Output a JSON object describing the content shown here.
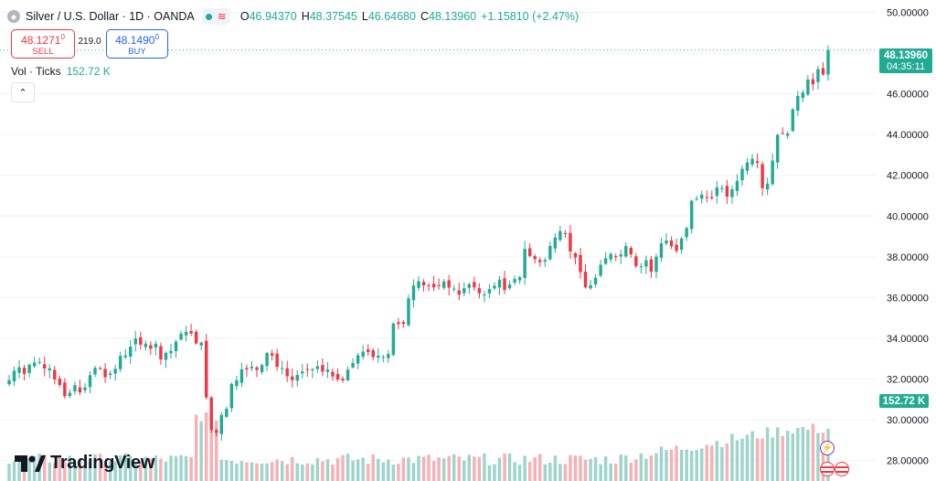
{
  "header": {
    "title": "Silver / U.S. Dollar · 1D · OANDA",
    "o_label": "O",
    "o_value": "46.94370",
    "h_label": "H",
    "h_value": "48.37545",
    "l_label": "L",
    "l_value": "46.64680",
    "c_label": "C",
    "c_value": "48.13960",
    "change": "+1.15810 (+2.47%)"
  },
  "trade": {
    "sell_price": "48.1271",
    "sell_price_sup": "0",
    "sell_label": "SELL",
    "spread": "219.0",
    "buy_price": "48.1490",
    "buy_price_sup": "0",
    "buy_label": "BUY"
  },
  "volume": {
    "label": "Vol · Ticks",
    "value": "152.72 K"
  },
  "price_badge": {
    "price": "48.13960",
    "countdown": "04:35:11"
  },
  "volume_badge": "152.72 K",
  "brand": "TradingView",
  "colors": {
    "up": "#22ab94",
    "down": "#f23645",
    "up_vol": "#9ed4cb",
    "down_vol": "#f5b1b5",
    "grid": "#f0f3fa"
  },
  "chart_data": {
    "type": "candlestick",
    "title": "Silver / U.S. Dollar · 1D · OANDA",
    "ylim": [
      27.0,
      50.6
    ],
    "y_ticks": [
      "50.00000",
      "48.00000",
      "46.00000",
      "44.00000",
      "42.00000",
      "40.00000",
      "38.00000",
      "36.00000",
      "34.00000",
      "32.00000",
      "30.00000",
      "28.00000"
    ],
    "y_tick_values": [
      50,
      48,
      46,
      44,
      42,
      40,
      38,
      36,
      34,
      32,
      30,
      28
    ],
    "last_price": 48.1396,
    "close": [
      31.95,
      32.41,
      32.58,
      32.26,
      32.7,
      32.81,
      32.84,
      32.52,
      32.53,
      31.98,
      31.71,
      31.16,
      31.33,
      31.7,
      31.35,
      31.59,
      32.19,
      32.55,
      32.52,
      32.09,
      32.27,
      32.5,
      33.14,
      33.16,
      33.59,
      33.99,
      33.69,
      33.74,
      33.49,
      33.74,
      32.96,
      33.28,
      33.38,
      33.84,
      34.23,
      34.32,
      34.24,
      33.75,
      33.79,
      31.1,
      29.5,
      29.37,
      30.24,
      30.54,
      31.76,
      31.94,
      32.48,
      32.48,
      32.61,
      32.45,
      32.69,
      33.28,
      33.15,
      32.6,
      32.53,
      32.14,
      31.95,
      32.21,
      32.37,
      32.46,
      32.48,
      32.63,
      32.37,
      32.47,
      32.13,
      31.98,
      31.94,
      32.46,
      32.79,
      33.17,
      33.35,
      33.33,
      33.08,
      33.15,
      33.09,
      33.23,
      34.73,
      34.7,
      34.71,
      35.96,
      36.59,
      36.81,
      36.6,
      36.58,
      36.5,
      36.58,
      36.79,
      36.49,
      36.44,
      36.14,
      36.46,
      36.65,
      36.5,
      36.21,
      36.15,
      36.42,
      36.58,
      36.88,
      36.37,
      36.64,
      36.91,
      37.0,
      38.39,
      38.04,
      37.89,
      37.74,
      37.84,
      38.53,
      38.95,
      39.26,
      39.13,
      38.26,
      37.97,
      37.25,
      36.5,
      36.61,
      36.97,
      37.61,
      37.93,
      38.14,
      38.01,
      38.12,
      38.53,
      38.12,
      37.54,
      37.53,
      37.83,
      37.27,
      38.01,
      38.66,
      38.8,
      38.52,
      38.29,
      38.9,
      39.41,
      40.75,
      40.85,
      41.05,
      40.88,
      40.87,
      41.4,
      41.38,
      40.95,
      41.31,
      41.73,
      42.32,
      42.63,
      42.81,
      42.61,
      41.37,
      41.59,
      42.72,
      43.98,
      44.06,
      44.05,
      45.24,
      45.89,
      46.06,
      46.7,
      46.46,
      47.21,
      46.94,
      48.14
    ]
  }
}
